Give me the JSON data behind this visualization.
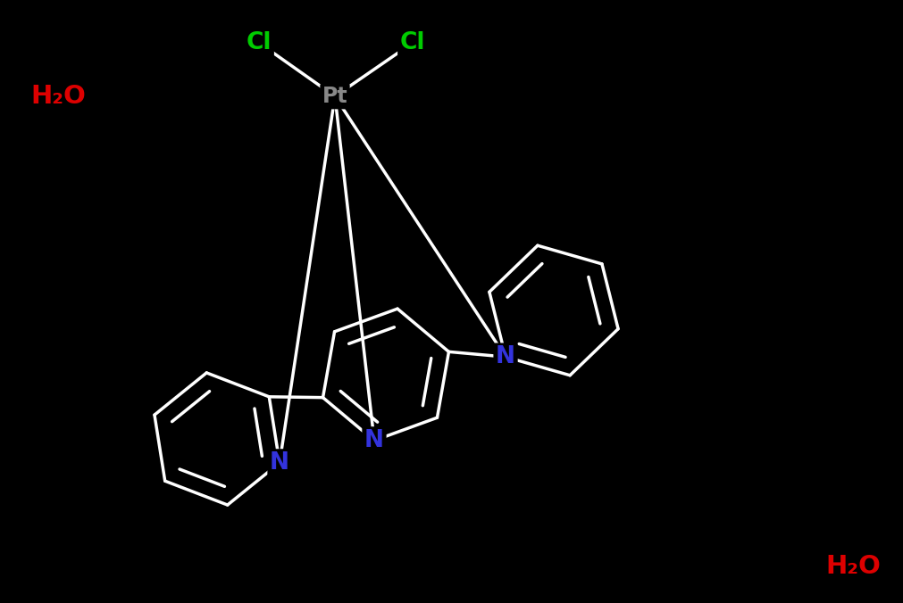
{
  "background_color": "#000000",
  "bond_color": "#ffffff",
  "bond_width": 2.5,
  "pt_color": "#888888",
  "cl_color": "#00cc00",
  "n_color": "#3333dd",
  "h2o_color": "#dd0000",
  "pt_label": "Pt",
  "cl1_label": "Cl",
  "cl2_label": "Cl",
  "n_center_label": "N",
  "n_right_label": "N",
  "n_left_label": "N",
  "h2o1_label": "H₂O",
  "h2o2_label": "H₂O",
  "pt_fontsize": 17,
  "cl_fontsize": 19,
  "n_fontsize": 19,
  "h2o_fontsize": 21,
  "figsize": [
    10.12,
    6.76
  ],
  "dpi": 100
}
